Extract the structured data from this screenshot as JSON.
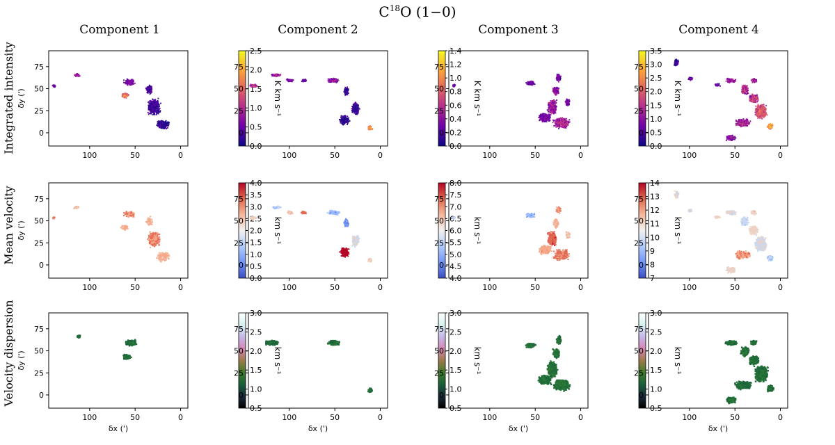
{
  "figure": {
    "title_main": "C",
    "title_sup": "18",
    "title_rest": "O (1−0)",
    "columns": [
      "Component 1",
      "Component 2",
      "Component 3",
      "Component 4"
    ],
    "rows": [
      "Integrated intensity",
      "Mean velocity",
      "Velocity dispersion"
    ],
    "ylabel": "δy (')",
    "xlabel": "δx (')"
  },
  "chart_data": {
    "type": "heatmap",
    "xlim": [
      145,
      -8
    ],
    "ylim": [
      -15,
      93
    ],
    "xticks": [
      100,
      50,
      0
    ],
    "yticks": [
      0,
      25,
      50,
      75
    ],
    "rows": [
      {
        "row": "Integrated intensity",
        "cmap": "plasma",
        "colorbar_label": "K km s⁻¹",
        "panels": [
          {
            "component": "Component 1",
            "clim": [
              0.0,
              2.5
            ],
            "cticks": [
              "0.0",
              "0.5",
              "1.0",
              "1.5",
              "2.0",
              "2.5"
            ]
          },
          {
            "component": "Component 2",
            "clim": [
              0.0,
              1.4
            ],
            "cticks": [
              "0.0",
              "0.2",
              "0.4",
              "0.6",
              "0.8",
              "1.0",
              "1.2",
              "1.4"
            ]
          },
          {
            "component": "Component 3",
            "clim": [
              0.0,
              3.5
            ],
            "cticks": [
              "0.0",
              "0.5",
              "1.0",
              "1.5",
              "2.0",
              "2.5",
              "3.0",
              "3.5"
            ]
          },
          {
            "component": "Component 4",
            "clim": [
              0.0,
              3.5
            ],
            "cticks": [
              "0.0",
              "0.5",
              "1.0",
              "1.5",
              "2.0",
              "2.5",
              "3.0",
              "3.5"
            ]
          }
        ]
      },
      {
        "row": "Mean velocity",
        "cmap": "coolwarm",
        "colorbar_label": "km s⁻¹",
        "panels": [
          {
            "component": "Component 1",
            "clim": [
              0.0,
              4.0
            ],
            "cticks": [
              "0.0",
              "0.5",
              "1.0",
              "1.5",
              "2.0",
              "2.5",
              "3.0",
              "3.5",
              "4.0"
            ]
          },
          {
            "component": "Component 2",
            "clim": [
              4.0,
              8.0
            ],
            "cticks": [
              "4.0",
              "4.5",
              "5.0",
              "5.5",
              "6.0",
              "6.5",
              "7.0",
              "7.5",
              "8.0"
            ]
          },
          {
            "component": "Component 3",
            "clim": [
              7,
              14
            ],
            "cticks": [
              "7",
              "8",
              "9",
              "10",
              "11",
              "12",
              "13",
              "14"
            ]
          },
          {
            "component": "Component 4",
            "clim": [
              7,
              14
            ],
            "cticks": [
              "7",
              "8",
              "9",
              "10",
              "11",
              "12",
              "13",
              "14"
            ]
          }
        ]
      },
      {
        "row": "Velocity dispersion",
        "cmap": "cubehelix",
        "colorbar_label": "km s⁻¹",
        "panels": [
          {
            "component": "Component 1",
            "clim": [
              0.5,
              3.0
            ],
            "cticks": [
              "0.5",
              "1.0",
              "1.5",
              "2.0",
              "2.5",
              "3.0"
            ]
          },
          {
            "component": "Component 2",
            "clim": [
              0.5,
              3.0
            ],
            "cticks": [
              "0.5",
              "1.0",
              "1.5",
              "2.0",
              "2.5",
              "3.0"
            ]
          },
          {
            "component": "Component 3",
            "clim": [
              0.5,
              3.0
            ],
            "cticks": [
              "0.5",
              "1.0",
              "1.5",
              "2.0",
              "2.5",
              "3.0"
            ]
          },
          {
            "component": "Component 4",
            "clim": [
              0.5,
              3.0
            ],
            "cticks": [
              "0.5",
              "1.0",
              "1.5",
              "2.0",
              "2.5",
              "3.0"
            ]
          }
        ]
      }
    ],
    "emission_maps": [
      {
        "component": "Component 1",
        "blobs": [
          [
            57,
            58,
            7,
            4,
            0.35
          ],
          [
            62,
            43,
            5,
            3,
            0.8
          ],
          [
            115,
            66,
            4,
            2,
            0.45
          ],
          [
            140,
            54,
            2,
            2,
            0.3
          ],
          [
            30,
            30,
            8,
            10,
            0.15
          ],
          [
            20,
            10,
            8,
            6,
            0.1
          ],
          [
            35,
            50,
            4,
            6,
            0.15
          ]
        ],
        "disp_blobs": [
          [
            55,
            60,
            7,
            4,
            0.28
          ],
          [
            60,
            44,
            5,
            3,
            0.3
          ],
          [
            113,
            67,
            2,
            2,
            0.25
          ]
        ]
      },
      {
        "component": "Component 2",
        "blobs": [
          [
            140,
            54,
            5,
            2,
            0.55
          ],
          [
            115,
            66,
            6,
            2,
            0.45
          ],
          [
            100,
            60,
            5,
            2,
            0.35
          ],
          [
            85,
            60,
            4,
            2,
            0.3
          ],
          [
            52,
            60,
            8,
            3,
            0.4
          ],
          [
            38,
            48,
            3,
            6,
            0.15
          ],
          [
            28,
            28,
            5,
            8,
            0.15
          ],
          [
            12,
            6,
            3,
            3,
            0.9
          ],
          [
            40,
            15,
            6,
            6,
            0.1
          ]
        ],
        "disp_blobs": [
          [
            52,
            60,
            8,
            3,
            0.28
          ],
          [
            12,
            6,
            3,
            3,
            0.3
          ],
          [
            120,
            60,
            8,
            3,
            0.25
          ]
        ]
      },
      {
        "component": "Component 3",
        "blobs": [
          [
            56,
            57,
            6,
            3,
            0.3
          ],
          [
            28,
            48,
            4,
            6,
            0.4
          ],
          [
            32,
            30,
            6,
            10,
            0.45
          ],
          [
            22,
            12,
            10,
            7,
            0.5
          ],
          [
            40,
            18,
            8,
            6,
            0.35
          ],
          [
            140,
            54,
            2,
            2,
            0.3
          ],
          [
            25,
            63,
            3,
            5,
            0.3
          ],
          [
            15,
            35,
            3,
            5,
            0.3
          ]
        ],
        "disp_blobs": [
          [
            56,
            57,
            6,
            3,
            0.3
          ],
          [
            28,
            48,
            4,
            6,
            0.35
          ],
          [
            32,
            30,
            6,
            10,
            0.35
          ],
          [
            22,
            12,
            10,
            7,
            0.35
          ],
          [
            40,
            18,
            8,
            6,
            0.3
          ],
          [
            25,
            63,
            3,
            5,
            0.3
          ]
        ]
      },
      {
        "component": "Component 4",
        "blobs": [
          [
            55,
            60,
            7,
            3,
            0.45
          ],
          [
            40,
            50,
            5,
            6,
            0.55
          ],
          [
            30,
            40,
            6,
            6,
            0.6
          ],
          [
            22,
            25,
            8,
            10,
            0.7
          ],
          [
            12,
            8,
            4,
            4,
            0.95
          ],
          [
            42,
            12,
            10,
            5,
            0.5
          ],
          [
            55,
            -5,
            6,
            4,
            0.4
          ],
          [
            30,
            60,
            4,
            3,
            0.45
          ],
          [
            100,
            62,
            3,
            2,
            0.25
          ],
          [
            115,
            80,
            3,
            5,
            0.2
          ],
          [
            70,
            55,
            4,
            2,
            0.25
          ]
        ],
        "disp_blobs": [
          [
            55,
            60,
            7,
            3,
            0.3
          ],
          [
            40,
            50,
            5,
            6,
            0.3
          ],
          [
            30,
            40,
            6,
            6,
            0.3
          ],
          [
            22,
            25,
            8,
            10,
            0.3
          ],
          [
            12,
            8,
            4,
            4,
            0.3
          ],
          [
            42,
            12,
            10,
            5,
            0.3
          ],
          [
            55,
            -5,
            6,
            4,
            0.3
          ],
          [
            30,
            60,
            4,
            3,
            0.3
          ]
        ]
      }
    ]
  }
}
